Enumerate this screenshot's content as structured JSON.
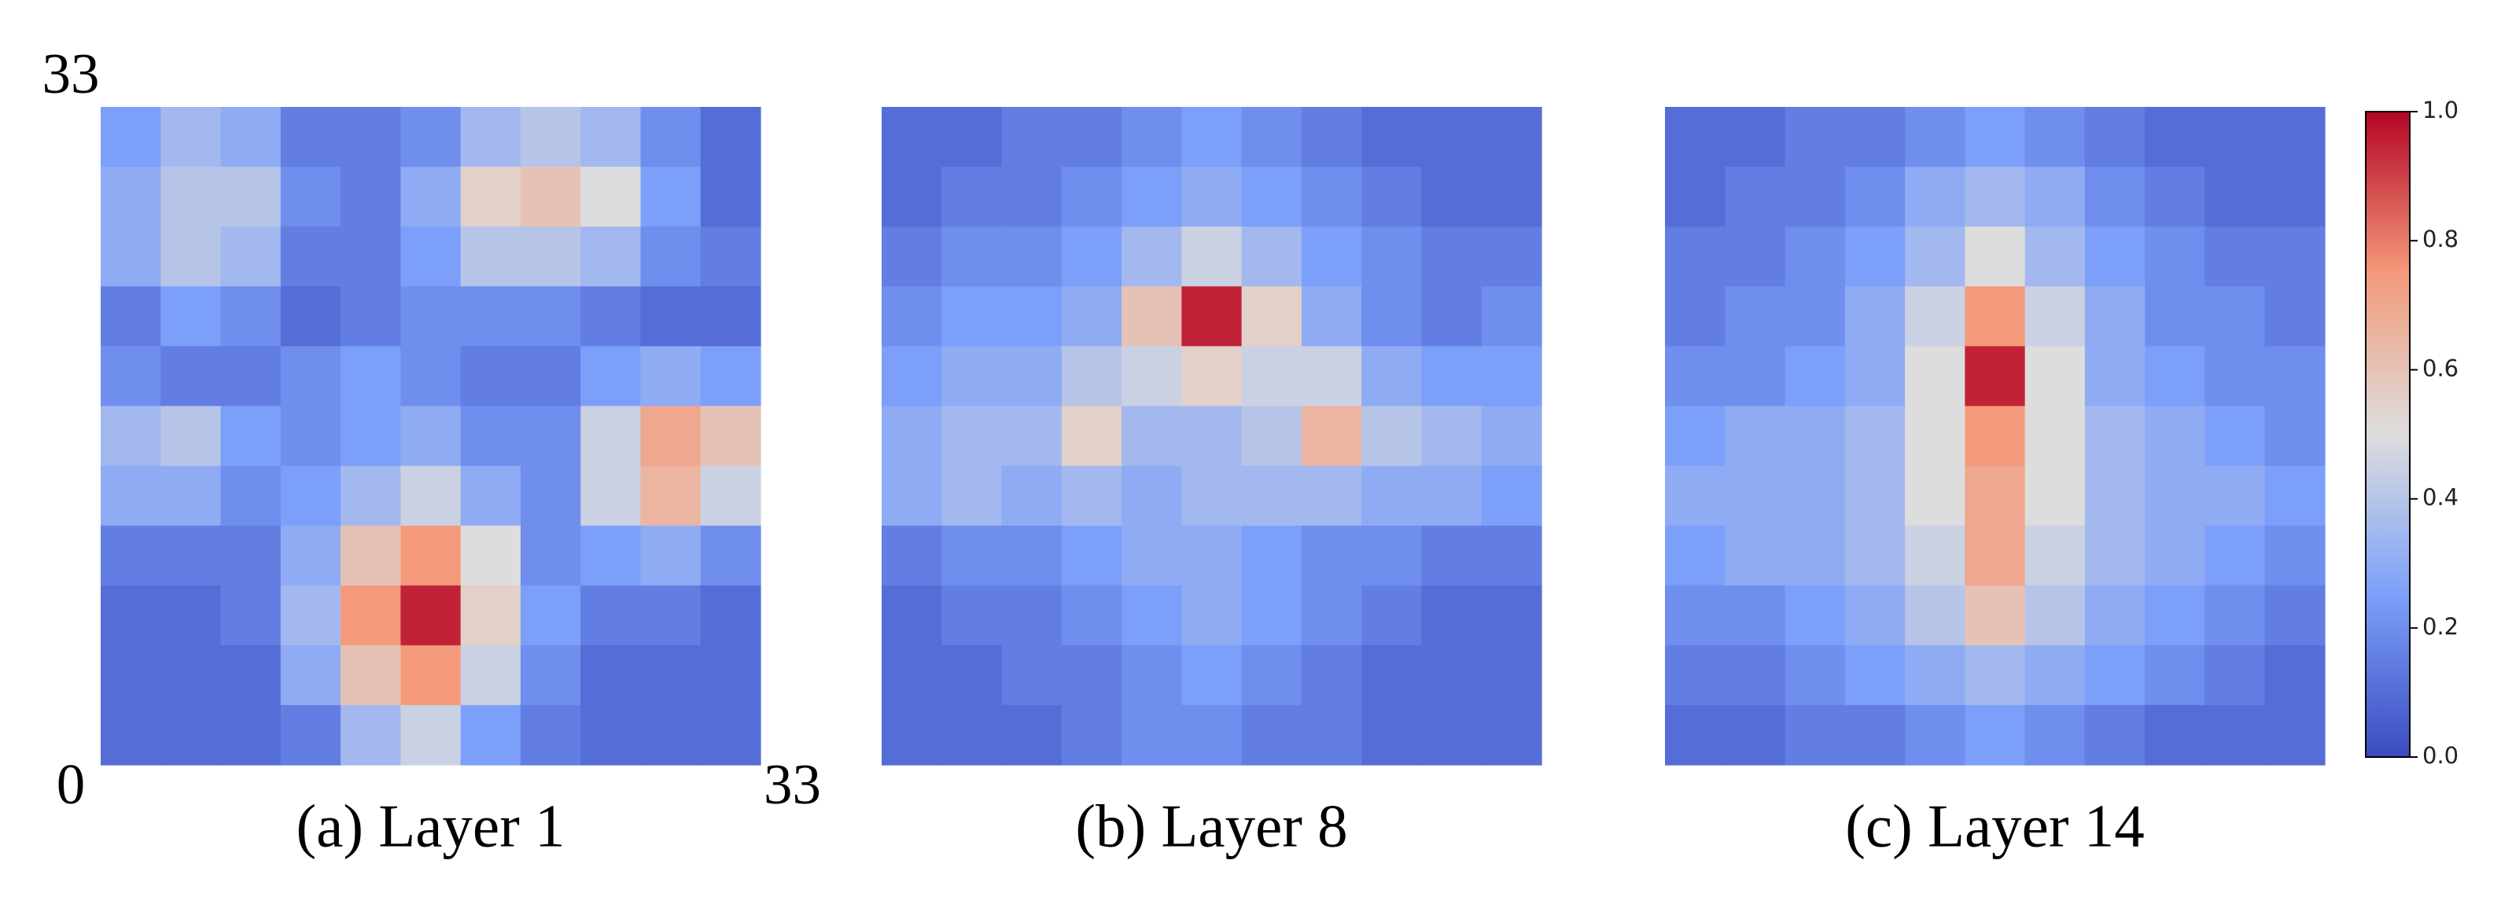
{
  "chart_data": {
    "type": "heatmap",
    "colormap": "coolwarm",
    "panels": [
      {
        "caption": "(a) Layer 1",
        "xlim": [
          0,
          33
        ],
        "ylim": [
          0,
          33
        ],
        "xticks": [
          33
        ],
        "yticks": [
          0,
          33
        ],
        "values": [
          [
            0.25,
            0.35,
            0.3,
            0.15,
            0.15,
            0.2,
            0.35,
            0.4,
            0.35,
            0.2,
            0.1
          ],
          [
            0.3,
            0.4,
            0.4,
            0.2,
            0.15,
            0.3,
            0.55,
            0.6,
            0.5,
            0.25,
            0.1
          ],
          [
            0.3,
            0.4,
            0.35,
            0.15,
            0.15,
            0.25,
            0.4,
            0.4,
            0.35,
            0.2,
            0.15
          ],
          [
            0.15,
            0.25,
            0.2,
            0.1,
            0.15,
            0.2,
            0.2,
            0.2,
            0.15,
            0.1,
            0.1
          ],
          [
            0.2,
            0.15,
            0.15,
            0.2,
            0.25,
            0.2,
            0.15,
            0.15,
            0.25,
            0.3,
            0.25
          ],
          [
            0.35,
            0.4,
            0.25,
            0.2,
            0.25,
            0.3,
            0.2,
            0.2,
            0.45,
            0.7,
            0.6
          ],
          [
            0.3,
            0.3,
            0.2,
            0.25,
            0.35,
            0.45,
            0.3,
            0.2,
            0.45,
            0.65,
            0.45
          ],
          [
            0.15,
            0.15,
            0.15,
            0.3,
            0.6,
            0.75,
            0.5,
            0.2,
            0.25,
            0.3,
            0.2
          ],
          [
            0.1,
            0.1,
            0.15,
            0.35,
            0.75,
            0.95,
            0.55,
            0.25,
            0.15,
            0.15,
            0.1
          ],
          [
            0.1,
            0.1,
            0.1,
            0.3,
            0.6,
            0.75,
            0.45,
            0.2,
            0.1,
            0.1,
            0.1
          ],
          [
            0.1,
            0.1,
            0.1,
            0.15,
            0.35,
            0.45,
            0.25,
            0.15,
            0.1,
            0.1,
            0.1
          ]
        ]
      },
      {
        "caption": "(b) Layer 8",
        "values": [
          [
            0.1,
            0.1,
            0.15,
            0.15,
            0.2,
            0.25,
            0.2,
            0.15,
            0.1,
            0.1,
            0.1
          ],
          [
            0.1,
            0.15,
            0.15,
            0.2,
            0.25,
            0.3,
            0.25,
            0.2,
            0.15,
            0.1,
            0.1
          ],
          [
            0.15,
            0.2,
            0.2,
            0.25,
            0.35,
            0.45,
            0.35,
            0.25,
            0.2,
            0.15,
            0.15
          ],
          [
            0.2,
            0.25,
            0.25,
            0.3,
            0.6,
            0.95,
            0.55,
            0.3,
            0.2,
            0.15,
            0.2
          ],
          [
            0.25,
            0.3,
            0.3,
            0.4,
            0.45,
            0.55,
            0.45,
            0.45,
            0.3,
            0.25,
            0.25
          ],
          [
            0.3,
            0.35,
            0.35,
            0.55,
            0.35,
            0.35,
            0.4,
            0.65,
            0.4,
            0.35,
            0.3
          ],
          [
            0.3,
            0.35,
            0.3,
            0.35,
            0.3,
            0.35,
            0.35,
            0.35,
            0.3,
            0.3,
            0.25
          ],
          [
            0.15,
            0.2,
            0.2,
            0.25,
            0.3,
            0.3,
            0.25,
            0.2,
            0.2,
            0.15,
            0.15
          ],
          [
            0.1,
            0.15,
            0.15,
            0.2,
            0.25,
            0.3,
            0.25,
            0.2,
            0.15,
            0.1,
            0.1
          ],
          [
            0.1,
            0.1,
            0.15,
            0.15,
            0.2,
            0.25,
            0.2,
            0.15,
            0.1,
            0.1,
            0.1
          ],
          [
            0.1,
            0.1,
            0.1,
            0.15,
            0.2,
            0.2,
            0.15,
            0.15,
            0.1,
            0.1,
            0.1
          ]
        ]
      },
      {
        "caption": "(c) Layer 14",
        "values": [
          [
            0.1,
            0.1,
            0.15,
            0.15,
            0.2,
            0.25,
            0.2,
            0.15,
            0.1,
            0.1,
            0.1
          ],
          [
            0.1,
            0.15,
            0.15,
            0.2,
            0.3,
            0.35,
            0.3,
            0.2,
            0.15,
            0.1,
            0.1
          ],
          [
            0.15,
            0.15,
            0.2,
            0.25,
            0.35,
            0.5,
            0.35,
            0.25,
            0.2,
            0.15,
            0.15
          ],
          [
            0.15,
            0.2,
            0.2,
            0.3,
            0.45,
            0.75,
            0.45,
            0.3,
            0.2,
            0.2,
            0.15
          ],
          [
            0.2,
            0.2,
            0.25,
            0.3,
            0.5,
            0.95,
            0.5,
            0.3,
            0.25,
            0.2,
            0.2
          ],
          [
            0.25,
            0.3,
            0.3,
            0.35,
            0.5,
            0.75,
            0.5,
            0.35,
            0.3,
            0.25,
            0.2
          ],
          [
            0.3,
            0.3,
            0.3,
            0.35,
            0.5,
            0.7,
            0.5,
            0.35,
            0.3,
            0.3,
            0.25
          ],
          [
            0.25,
            0.3,
            0.3,
            0.35,
            0.45,
            0.7,
            0.45,
            0.35,
            0.3,
            0.25,
            0.2
          ],
          [
            0.2,
            0.2,
            0.25,
            0.3,
            0.4,
            0.6,
            0.4,
            0.3,
            0.25,
            0.2,
            0.15
          ],
          [
            0.15,
            0.15,
            0.2,
            0.25,
            0.3,
            0.35,
            0.3,
            0.25,
            0.2,
            0.15,
            0.1
          ],
          [
            0.1,
            0.1,
            0.15,
            0.15,
            0.2,
            0.25,
            0.2,
            0.15,
            0.1,
            0.1,
            0.1
          ]
        ]
      }
    ],
    "colorbar": {
      "clim": [
        0,
        1
      ],
      "ticks": [
        {
          "value": 0,
          "label": "0.0"
        },
        {
          "value": 0.2,
          "label": "0.2"
        },
        {
          "value": 0.4,
          "label": "0.4"
        },
        {
          "value": 0.6,
          "label": "0.6"
        },
        {
          "value": 0.8,
          "label": "0.8"
        },
        {
          "value": 1,
          "label": "1.0"
        }
      ]
    }
  }
}
